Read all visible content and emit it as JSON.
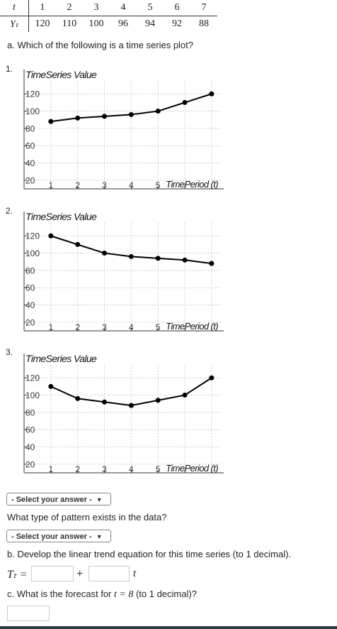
{
  "table": {
    "t_label": "t",
    "y_label": "Yₜ",
    "t": [
      "1",
      "2",
      "3",
      "4",
      "5",
      "6",
      "7"
    ],
    "y": [
      "120",
      "110",
      "100",
      "96",
      "94",
      "92",
      "88"
    ]
  },
  "question_a": "a. Which of the following is a time series plot?",
  "options": [
    "1.",
    "2.",
    "3."
  ],
  "select_a": "- Select your answer -",
  "pattern_question": "What type of pattern exists in the data?",
  "select_pattern": "- Select your answer -",
  "question_b": "b. Develop the linear trend equation for this time series (to 1 decimal).",
  "equation": {
    "lhs": "Tₜ =",
    "plus": "+",
    "var": "t"
  },
  "question_c_prefix": "c. What is the forecast for ",
  "question_c_math": "t = 8",
  "question_c_suffix": " (to 1 decimal)?",
  "chart_data": [
    {
      "type": "line",
      "title": "TimeSeries Value",
      "xlabel": "TimePeriod (t)",
      "x": [
        1,
        2,
        3,
        4,
        5,
        6,
        7
      ],
      "y": [
        88,
        92,
        94,
        96,
        100,
        110,
        120
      ],
      "xticks": [
        "1",
        "2",
        "3",
        "4",
        "5"
      ],
      "yticks": [
        "120",
        "100",
        "80",
        "60",
        "40",
        "20"
      ],
      "xlim": [
        0,
        7.4
      ],
      "ylim": [
        10,
        135
      ],
      "grid": true
    },
    {
      "type": "line",
      "title": "TimeSeries Value",
      "xlabel": "TimePeriod (t)",
      "x": [
        1,
        2,
        3,
        4,
        5,
        6,
        7
      ],
      "y": [
        120,
        110,
        100,
        96,
        94,
        92,
        88
      ],
      "xticks": [
        "1",
        "2",
        "3",
        "4",
        "5"
      ],
      "yticks": [
        "120",
        "100",
        "80",
        "60",
        "40",
        "20"
      ],
      "xlim": [
        0,
        7.4
      ],
      "ylim": [
        10,
        135
      ],
      "grid": true
    },
    {
      "type": "line",
      "title": "TimeSeries Value",
      "xlabel": "TimePeriod (t)",
      "x": [
        1,
        2,
        3,
        4,
        5,
        6,
        7
      ],
      "y": [
        110,
        96,
        92,
        88,
        94,
        100,
        120
      ],
      "xticks": [
        "1",
        "2",
        "3",
        "4",
        "5"
      ],
      "yticks": [
        "120",
        "100",
        "80",
        "60",
        "40",
        "20"
      ],
      "xlim": [
        0,
        7.4
      ],
      "ylim": [
        10,
        135
      ],
      "grid": true
    }
  ]
}
